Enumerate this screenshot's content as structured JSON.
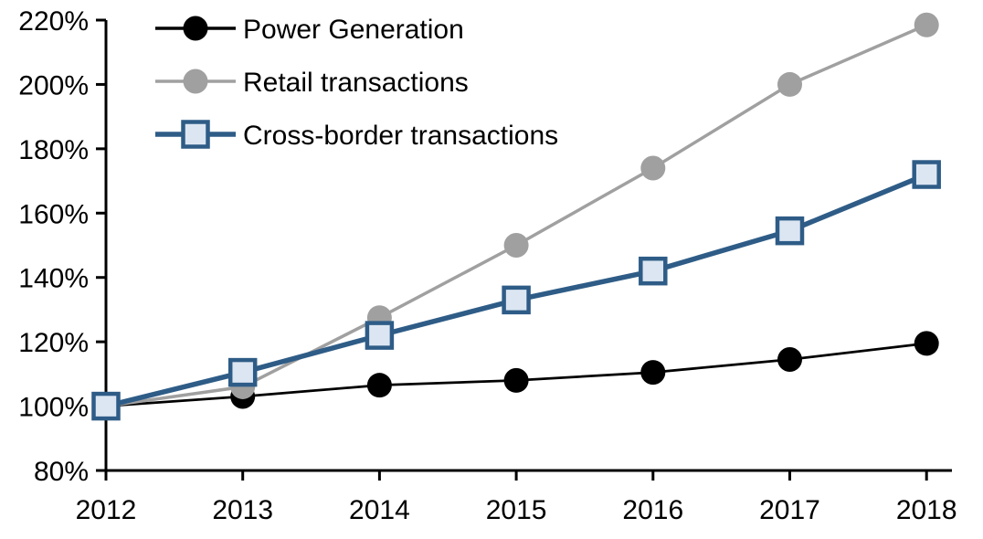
{
  "chart_data": {
    "type": "line",
    "title": "",
    "xlabel": "",
    "ylabel": "",
    "categories": [
      "2012",
      "2013",
      "2014",
      "2015",
      "2016",
      "2017",
      "2018"
    ],
    "y_ticks": [
      "220%",
      "200%",
      "180%",
      "160%",
      "140%",
      "120%",
      "100%",
      "80%"
    ],
    "ylim": [
      80,
      220
    ],
    "y_tick_step": 20,
    "grid": false,
    "legend_position": "top-left-inside",
    "background_color": "#ffffff",
    "axis_color": "#000000",
    "series": [
      {
        "name": "Power Generation",
        "marker": "circle",
        "color": "#000000",
        "marker_fill": "#000000",
        "line_width": 2.75,
        "values": [
          100,
          103,
          106.5,
          108,
          110.5,
          114.5,
          119.5
        ]
      },
      {
        "name": "Retail transactions",
        "marker": "circle",
        "color": "#A0A0A0",
        "marker_fill": "#A0A0A0",
        "line_width": 3.5,
        "values": [
          100,
          106,
          127.5,
          150,
          174,
          200,
          218.5
        ]
      },
      {
        "name": "Cross-border transactions",
        "marker": "square",
        "color": "#2E5C87",
        "marker_fill": "#DCE6F2",
        "line_width": 5.5,
        "values": [
          100,
          110.5,
          122,
          133,
          142,
          154.5,
          172
        ]
      }
    ]
  }
}
